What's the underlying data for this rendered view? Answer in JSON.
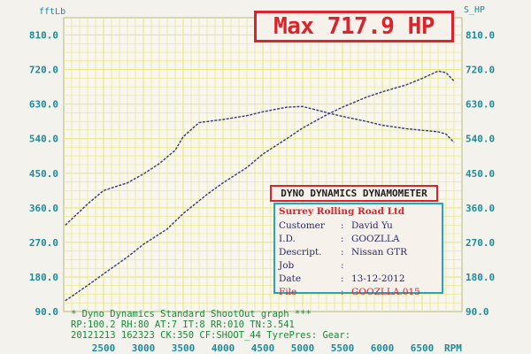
{
  "max_label": "Max 717.9 HP",
  "dyno_header": "DYNO DYNAMICS DYNAMOMETER",
  "info": {
    "shop": "Surrey Rolling Road Ltd",
    "rows": [
      {
        "label": "Customer",
        "sep": ":",
        "value": "David Yu"
      },
      {
        "label": "I.D.",
        "sep": ":",
        "value": "GOOZLLA"
      },
      {
        "label": "Descript.",
        "sep": ":",
        "value": "Nissan GTR"
      },
      {
        "label": "Job",
        "sep": ":",
        "value": ""
      },
      {
        "label": "Date",
        "sep": ":",
        "value": "13-12-2012"
      },
      {
        "label": "File",
        "sep": ":",
        "value": "GOOZLLA.015"
      }
    ]
  },
  "footer": {
    "line1": "* Dyno Dynamics Standard ShootOut graph ***",
    "line2": "RP:100.2 RH:80 AT:7  IT:8   RR:010 TN:3.541",
    "line3": "20121213 162323 CK:350 CF:SHOOT_44 TyrePres:          Gear:"
  },
  "colors": {
    "grid": "#e5e578",
    "axis_text": "#1e8a9a",
    "accent_red": "#d8242a",
    "curve": "#3a3a7a",
    "info_border": "#2aa0c8"
  },
  "chart_data": {
    "type": "line",
    "xlabel": "RPM",
    "y_left_label": "fftLb",
    "y_right_label": "S_HP",
    "xlim": [
      2000,
      7000
    ],
    "ylim": [
      90,
      855
    ],
    "x_ticks": [
      2500,
      3000,
      3500,
      4000,
      4500,
      5000,
      5500,
      6000,
      6500
    ],
    "y_ticks": [
      90,
      180,
      270,
      360,
      450,
      540,
      630,
      720,
      810
    ],
    "y_tick_labels": [
      "90.0",
      "180.0",
      "270.0",
      "360.0",
      "450.0",
      "540.0",
      "630.0",
      "720.0",
      "810.0"
    ],
    "grid": true,
    "series": [
      {
        "name": "",
        "x": [
          2020,
          2300,
          2500,
          2800,
          3000,
          3200,
          3400,
          3500,
          3700,
          4000,
          4300,
          4500,
          4800,
          5000,
          5300,
          5500,
          5800,
          6000,
          6300,
          6500,
          6700,
          6800,
          6900
        ],
        "values": [
          315,
          370,
          405,
          425,
          448,
          475,
          510,
          545,
          582,
          590,
          600,
          610,
          622,
          624,
          608,
          598,
          585,
          575,
          566,
          562,
          558,
          552,
          530
        ]
      },
      {
        "name": "",
        "x": [
          2020,
          2300,
          2500,
          2800,
          3000,
          3300,
          3500,
          3800,
          4000,
          4300,
          4500,
          4800,
          5000,
          5300,
          5500,
          5800,
          6000,
          6300,
          6500,
          6700,
          6800,
          6900
        ],
        "values": [
          118,
          158,
          188,
          232,
          265,
          305,
          345,
          395,
          425,
          465,
          500,
          540,
          568,
          602,
          622,
          648,
          662,
          680,
          697,
          716,
          712,
          690
        ]
      }
    ]
  }
}
